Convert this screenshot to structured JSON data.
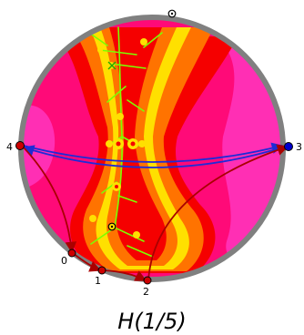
{
  "caption": "H(1/5)",
  "colors": {
    "disk_rim": "#808080",
    "field_magenta": "#ff0a78",
    "field_pink": "#ff2fb4",
    "field_red": "#f50000",
    "field_orange": "#ff7300",
    "field_yellow": "#ffe000",
    "field_green": "#7cff00",
    "red_arc": "#aa0000",
    "blue_arc": "#1f2bd6",
    "red_point": "#cc0000",
    "blue_point": "#0000cc"
  },
  "points": [
    {
      "id": "0",
      "label": "0",
      "color": "red"
    },
    {
      "id": "1",
      "label": "1",
      "color": "red"
    },
    {
      "id": "2",
      "label": "2",
      "color": "red"
    },
    {
      "id": "3",
      "label": "3",
      "color": "blue"
    },
    {
      "id": "4",
      "label": "4",
      "color": "red"
    }
  ],
  "marked_points": [
    {
      "id": "top-boundary-marker",
      "color": "#000000"
    },
    {
      "id": "interior-marker",
      "color": "#000000"
    }
  ],
  "arrows": [
    {
      "from": "4",
      "to": "0",
      "color": "red"
    },
    {
      "from": "0",
      "to": "1",
      "color": "red"
    },
    {
      "from": "1",
      "to": "2",
      "color": "red"
    },
    {
      "from": "2",
      "to": "3",
      "color": "red"
    },
    {
      "from": "3",
      "to": "4",
      "color": "blue"
    },
    {
      "from": "4",
      "to": "3",
      "color": "blue"
    }
  ]
}
